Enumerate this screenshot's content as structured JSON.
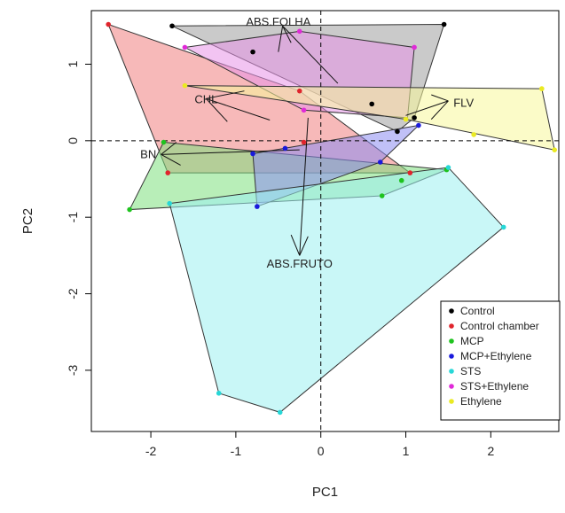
{
  "chart_data": {
    "type": "scatter",
    "subtype": "pca-biplot-convex-hulls",
    "xlabel": "PC1",
    "ylabel": "PC2",
    "xlim": [
      -2.7,
      2.8
    ],
    "ylim": [
      -3.8,
      1.7
    ],
    "x_ticks": [
      -2,
      -1,
      0,
      1,
      2
    ],
    "y_ticks": [
      -3,
      -2,
      -1,
      0,
      1
    ],
    "x_tick_labels": [
      "-2",
      "-1",
      "0",
      "1",
      "2"
    ],
    "y_tick_labels": [
      "-3",
      "-2",
      "-1",
      "0",
      "1"
    ],
    "grid": false,
    "reference_lines": {
      "x": 0,
      "y": 0,
      "style": "dashed"
    },
    "legend": {
      "position": "bottom-right"
    },
    "series": [
      {
        "name": "Control",
        "color": "#000000",
        "fill": "#9e9e9e",
        "points": [
          [
            -1.75,
            1.5
          ],
          [
            1.45,
            1.52
          ],
          [
            -0.8,
            1.16
          ],
          [
            0.6,
            0.48
          ],
          [
            0.9,
            0.12
          ],
          [
            1.1,
            0.3
          ]
        ],
        "hull": [
          [
            -1.75,
            1.5
          ],
          [
            1.45,
            1.52
          ],
          [
            1.1,
            0.3
          ],
          [
            0.9,
            0.12
          ]
        ]
      },
      {
        "name": "Control chamber",
        "color": "#e0242c",
        "fill": "#f08080",
        "points": [
          [
            -2.5,
            1.52
          ],
          [
            -0.25,
            0.65
          ],
          [
            -0.2,
            -0.02
          ],
          [
            1.05,
            -0.42
          ],
          [
            -1.8,
            -0.42
          ]
        ],
        "hull": [
          [
            -2.5,
            1.52
          ],
          [
            -0.25,
            0.65
          ],
          [
            1.05,
            -0.42
          ],
          [
            -1.8,
            -0.42
          ]
        ]
      },
      {
        "name": "MCP",
        "color": "#1ec31e",
        "fill": "#7ee07e",
        "points": [
          [
            -2.25,
            -0.9
          ],
          [
            -1.85,
            -0.02
          ],
          [
            0.95,
            -0.52
          ],
          [
            0.72,
            -0.72
          ],
          [
            1.48,
            -0.38
          ]
        ],
        "hull": [
          [
            -2.25,
            -0.9
          ],
          [
            -1.85,
            -0.02
          ],
          [
            1.48,
            -0.38
          ],
          [
            0.72,
            -0.72
          ]
        ]
      },
      {
        "name": "MCP+Ethylene",
        "color": "#1a1adc",
        "fill": "#8c8cf0",
        "points": [
          [
            -0.8,
            -0.17
          ],
          [
            -0.75,
            -0.86
          ],
          [
            -0.42,
            -0.1
          ],
          [
            0.7,
            -0.28
          ],
          [
            1.15,
            0.2
          ]
        ],
        "hull": [
          [
            -0.8,
            -0.17
          ],
          [
            1.15,
            0.2
          ],
          [
            0.7,
            -0.28
          ],
          [
            -0.75,
            -0.86
          ]
        ]
      },
      {
        "name": "STS",
        "color": "#27d7d7",
        "fill": "#9cf0f0",
        "points": [
          [
            -1.78,
            -0.82
          ],
          [
            1.5,
            -0.35
          ],
          [
            2.15,
            -1.13
          ],
          [
            -0.48,
            -3.55
          ],
          [
            -1.2,
            -3.3
          ]
        ],
        "hull": [
          [
            -1.78,
            -0.82
          ],
          [
            1.5,
            -0.35
          ],
          [
            2.15,
            -1.13
          ],
          [
            -0.48,
            -3.55
          ],
          [
            -1.2,
            -3.3
          ]
        ]
      },
      {
        "name": "STS+Ethylene",
        "color": "#e02ad8",
        "fill": "#e893e8",
        "points": [
          [
            -1.6,
            1.22
          ],
          [
            -0.25,
            1.43
          ],
          [
            1.1,
            1.22
          ],
          [
            -0.2,
            0.4
          ]
        ],
        "hull": [
          [
            -1.6,
            1.22
          ],
          [
            -0.25,
            1.43
          ],
          [
            1.1,
            1.22
          ],
          [
            1.02,
            0.3
          ],
          [
            -0.2,
            0.4
          ]
        ]
      },
      {
        "name": "Ethylene",
        "color": "#eaea22",
        "fill": "#f7f79a",
        "points": [
          [
            -1.6,
            0.72
          ],
          [
            2.6,
            0.68
          ],
          [
            2.75,
            -0.12
          ],
          [
            1.8,
            0.08
          ],
          [
            1.0,
            0.28
          ]
        ],
        "hull": [
          [
            -1.6,
            0.72
          ],
          [
            2.6,
            0.68
          ],
          [
            2.75,
            -0.12
          ],
          [
            1.0,
            0.28
          ]
        ]
      }
    ],
    "loadings": [
      {
        "label": "ABS.FOLHA",
        "lines": [
          [
            [
              -0.5,
              1.16
            ],
            [
              -0.45,
              1.5
            ]
          ],
          [
            [
              -0.45,
              1.5
            ],
            [
              -0.35,
              1.28
            ]
          ],
          [
            [
              -0.45,
              1.5
            ],
            [
              0.2,
              0.75
            ]
          ]
        ],
        "label_pos": [
          -0.5,
          1.56
        ]
      },
      {
        "label": "CHL",
        "lines": [
          [
            [
              -1.35,
              0.55
            ],
            [
              -0.9,
              0.65
            ]
          ],
          [
            [
              -1.35,
              0.55
            ],
            [
              -1.1,
              0.25
            ]
          ],
          [
            [
              -1.35,
              0.55
            ],
            [
              -0.6,
              0.27
            ]
          ]
        ],
        "label_pos": [
          -1.35,
          0.55
        ]
      },
      {
        "label": "FLV",
        "lines": [
          [
            [
              1.5,
              0.52
            ],
            [
              1.3,
              0.6
            ]
          ],
          [
            [
              1.5,
              0.52
            ],
            [
              1.3,
              0.28
            ]
          ],
          [
            [
              1.5,
              0.52
            ],
            [
              1.0,
              0.33
            ]
          ]
        ],
        "label_pos": [
          1.68,
          0.5
        ]
      },
      {
        "label": "BN",
        "lines": [
          [
            [
              -1.88,
              -0.18
            ],
            [
              -1.7,
              -0.02
            ]
          ],
          [
            [
              -1.88,
              -0.18
            ],
            [
              -1.65,
              -0.32
            ]
          ],
          [
            [
              -1.88,
              -0.18
            ],
            [
              -0.25,
              -0.12
            ]
          ]
        ],
        "label_pos": [
          -2.03,
          -0.17
        ]
      },
      {
        "label": "ABS.FRUTO",
        "lines": [
          [
            [
              -0.25,
              -1.5
            ],
            [
              -0.35,
              -1.23
            ]
          ],
          [
            [
              -0.25,
              -1.5
            ],
            [
              -0.15,
              -1.25
            ]
          ],
          [
            [
              -0.25,
              -1.5
            ],
            [
              -0.15,
              0.3
            ]
          ]
        ],
        "label_pos": [
          -0.25,
          -1.6
        ]
      }
    ]
  }
}
